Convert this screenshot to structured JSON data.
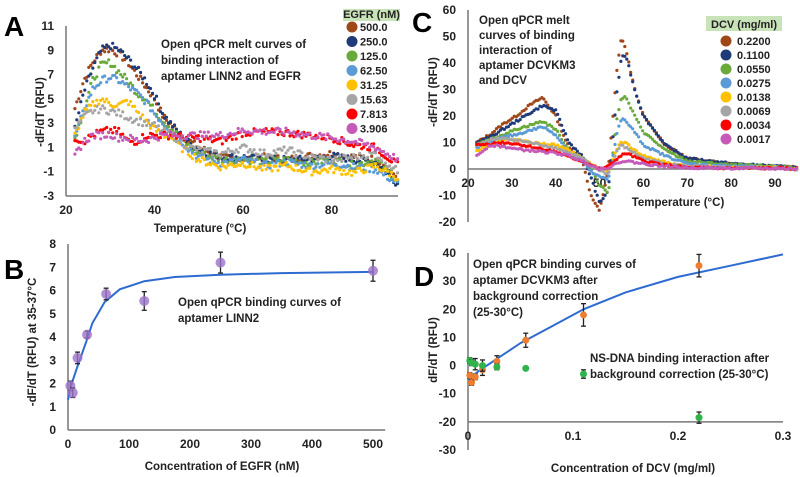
{
  "panels": {
    "a": "A",
    "b": "B",
    "c": "C",
    "d": "D"
  },
  "annotations": {
    "a": [
      "Open qPCR melt curves of",
      "binding interaction of",
      "aptamer LINN2  and EGFR"
    ],
    "b": [
      "Open qPCR binding curves of",
      "aptamer LINN2"
    ],
    "c": [
      "Open qPCR melt",
      "curves of binding",
      "interaction of",
      "aptamer DCVKM3",
      " and DCV"
    ],
    "d1": [
      "Open qPCR binding curves of",
      "aptamer DCVKM3 after",
      "background correction",
      "(25-30°C)"
    ],
    "d2": [
      "NS-DNA  binding interaction after",
      "background correction (25-30°C)"
    ]
  },
  "chart_data": [
    {
      "id": "a",
      "type": "scatter",
      "title": "Open qPCR melt curves of binding interaction of aptamer LINN2 and EGFR",
      "xlabel": "Temperature (°C)",
      "ylabel": "-dF/dT (RFU)",
      "xlim": [
        20,
        95
      ],
      "ylim": [
        -3,
        11
      ],
      "xticks": [
        "20",
        "40",
        "60",
        "80"
      ],
      "xtick_values": [
        20,
        40,
        60,
        80
      ],
      "yticks": [
        "-3",
        "-1",
        "1",
        "3",
        "5",
        "7",
        "9",
        "11"
      ],
      "ytick_values": [
        -3,
        -1,
        1,
        3,
        5,
        7,
        9,
        11
      ],
      "legend_title": "EGFR (nM)",
      "legend_position": "top-right",
      "x": [
        22,
        24,
        26,
        28,
        30,
        32,
        34,
        36,
        38,
        40,
        42,
        44,
        46,
        48,
        50,
        55,
        60,
        65,
        70,
        75,
        80,
        85,
        90,
        95
      ],
      "series": [
        {
          "name": "500.0",
          "color": "#a0471a",
          "values": [
            4.2,
            6.5,
            8,
            9,
            9.1,
            8.7,
            8,
            7,
            6,
            5,
            3.5,
            2.8,
            2,
            1.5,
            1,
            0.2,
            0,
            0.2,
            0,
            0.3,
            0.5,
            0.2,
            0,
            -1.5
          ]
        },
        {
          "name": "250.0",
          "color": "#1f3a78",
          "values": [
            2.5,
            5.5,
            7.5,
            9,
            9.4,
            9,
            8.3,
            7.5,
            6.5,
            5.3,
            3.7,
            2.8,
            2,
            1.3,
            0.8,
            0.2,
            0.2,
            0,
            0,
            0,
            0.3,
            0,
            -0.2,
            -2
          ]
        },
        {
          "name": "125.0",
          "color": "#6aaa3a",
          "values": [
            1.8,
            4,
            6.5,
            7.8,
            8,
            7.2,
            6.5,
            5.5,
            5,
            4,
            3.2,
            2.5,
            1.7,
            1,
            0.5,
            0,
            0,
            -0.2,
            0,
            -0.3,
            0,
            -0.5,
            0,
            -1.8
          ]
        },
        {
          "name": "62.50",
          "color": "#5b9bd5",
          "values": [
            1.8,
            4,
            5.8,
            6.5,
            6.8,
            6.5,
            6,
            5.5,
            4.8,
            3.8,
            3,
            2.2,
            1.5,
            0.8,
            0.2,
            -0.3,
            0,
            -0.5,
            -0.2,
            -0.5,
            -0.3,
            -0.6,
            -0.8,
            -2
          ]
        },
        {
          "name": "31.25",
          "color": "#ffc000",
          "values": [
            2,
            3.8,
            4.5,
            5,
            4.6,
            4.5,
            4.8,
            4,
            3.2,
            2.5,
            2,
            1.8,
            1,
            0.5,
            0,
            -0.6,
            -0.3,
            -0.8,
            -0.5,
            -1,
            -0.8,
            -1.1,
            -0.5,
            -1.5
          ]
        },
        {
          "name": "15.63",
          "color": "#a5a5a5",
          "values": [
            2.4,
            3.5,
            4,
            4.2,
            4,
            3.8,
            3.5,
            3.2,
            3,
            2.8,
            2.3,
            2,
            1.5,
            1,
            0.8,
            0.5,
            1,
            0.5,
            0.8,
            0.2,
            0,
            0.2,
            0.5,
            -1
          ]
        },
        {
          "name": "7.813",
          "color": "#ff0000",
          "values": [
            1.8,
            1.5,
            2,
            2.3,
            2.4,
            2.3,
            1.5,
            1.5,
            2,
            2,
            2,
            2,
            1.9,
            1.8,
            1.8,
            1.5,
            2.2,
            2.3,
            2.2,
            2,
            1.8,
            1.2,
            1,
            -0.5
          ]
        },
        {
          "name": "3.906",
          "color": "#c55ab8",
          "values": [
            0.3,
            1.5,
            2,
            2,
            2.1,
            1.8,
            1.8,
            1.6,
            1.6,
            1.8,
            2,
            2,
            2,
            2,
            2,
            2,
            2.4,
            2.3,
            2.3,
            2,
            1.8,
            1.5,
            1,
            0
          ]
        }
      ]
    },
    {
      "id": "b",
      "type": "scatter",
      "title": "Open qPCR binding curves of aptamer LINN2",
      "xlabel": "Concentration of EGFR (nM)",
      "ylabel": "-dF/dT (RFU) at 35-37°C",
      "xlim": [
        0,
        520
      ],
      "ylim": [
        0,
        8
      ],
      "xticks": [
        "0",
        "100",
        "200",
        "300",
        "400",
        "500"
      ],
      "xtick_values": [
        0,
        100,
        200,
        300,
        400,
        500
      ],
      "yticks": [
        "0",
        "1",
        "2",
        "3",
        "4",
        "5",
        "6",
        "7",
        "8"
      ],
      "ytick_values": [
        0,
        1,
        2,
        3,
        4,
        5,
        6,
        7,
        8
      ],
      "points": {
        "color": "#9b72c8",
        "x": [
          3.906,
          7.813,
          15.63,
          31.25,
          62.5,
          125,
          250,
          500
        ],
        "y": [
          1.9,
          1.6,
          3.1,
          4.1,
          5.85,
          5.55,
          7.2,
          6.85
        ],
        "error": [
          0.2,
          0.2,
          0.25,
          0.15,
          0.25,
          0.4,
          0.45,
          0.45
        ]
      },
      "fit": {
        "color": "#2e6bd1",
        "x": [
          0,
          5,
          15,
          30,
          40,
          60,
          85,
          125,
          175,
          250,
          350,
          500
        ],
        "y": [
          1.3,
          1.9,
          2.7,
          3.8,
          4.6,
          5.5,
          6.05,
          6.4,
          6.58,
          6.68,
          6.75,
          6.8
        ]
      }
    },
    {
      "id": "c",
      "type": "scatter",
      "title": "Open qPCR melt curves of binding interaction of aptamer DCVKM3 and DCV",
      "xlabel": "Temperature (°C)",
      "ylabel": "-dF/dT (RFU)",
      "xlim": [
        20,
        95
      ],
      "ylim": [
        -20,
        60
      ],
      "xticks": [
        "20",
        "30",
        "40",
        "50",
        "60",
        "70",
        "80",
        "90"
      ],
      "xtick_values": [
        20,
        30,
        40,
        50,
        60,
        70,
        80,
        90
      ],
      "yticks": [
        "-20",
        "-10",
        "0",
        "10",
        "20",
        "30",
        "40",
        "50",
        "60"
      ],
      "ytick_values": [
        -20,
        -10,
        0,
        10,
        20,
        30,
        40,
        50,
        60
      ],
      "legend_title": "DCV (mg/ml)",
      "legend_position": "top-right",
      "x": [
        22,
        25,
        28,
        31,
        34,
        37,
        40,
        43,
        46,
        48,
        50,
        52,
        54,
        55,
        56,
        58,
        60,
        65,
        70,
        80,
        90,
        95
      ],
      "series": [
        {
          "name": "0.2200",
          "color": "#a0471a",
          "values": [
            10,
            13,
            17,
            20,
            24,
            27,
            20,
            8,
            4,
            -10,
            -16,
            0,
            38,
            50,
            45,
            30,
            20,
            9,
            4,
            2,
            1,
            0.5
          ]
        },
        {
          "name": "0.1100",
          "color": "#1f3a78",
          "values": [
            10,
            12,
            15,
            18,
            21,
            24,
            22,
            10,
            5,
            -3,
            -13,
            -8,
            30,
            42,
            43,
            30,
            20,
            9,
            4,
            2,
            1,
            0.5
          ]
        },
        {
          "name": "0.0550",
          "color": "#6aaa3a",
          "values": [
            9,
            11,
            13,
            15,
            16.5,
            18,
            15,
            7,
            4,
            0,
            -6,
            -9,
            20,
            27,
            27,
            20,
            14,
            7,
            3,
            1.5,
            1,
            0.5
          ]
        },
        {
          "name": "0.0275",
          "color": "#5b9bd5",
          "values": [
            8,
            10,
            12,
            13,
            14.5,
            16,
            13,
            6,
            3,
            -1,
            -3,
            -4,
            14,
            19,
            18,
            14,
            9,
            5,
            2,
            1,
            0.5,
            0
          ]
        },
        {
          "name": "0.0138",
          "color": "#ffc000",
          "values": [
            7,
            9,
            11,
            11,
            10,
            9.5,
            9,
            7,
            4,
            2,
            0,
            -1,
            8,
            10,
            10,
            7,
            5,
            2.5,
            1,
            0.5,
            0.5,
            0
          ]
        },
        {
          "name": "0.0069",
          "color": "#a5a5a5",
          "values": [
            9,
            11,
            11.5,
            11,
            10,
            9,
            8,
            6,
            4,
            1.5,
            -0.5,
            -2,
            7,
            9,
            8,
            6,
            4,
            2,
            1,
            0.5,
            0.5,
            0
          ]
        },
        {
          "name": "0.0034",
          "color": "#ff0000",
          "values": [
            9,
            9.5,
            10,
            9.5,
            8.5,
            7.5,
            6.5,
            4.5,
            3,
            1.5,
            0,
            1,
            4,
            5,
            6,
            4.5,
            3,
            1.5,
            0.5,
            0.3,
            0.3,
            0
          ]
        },
        {
          "name": "0.0017",
          "color": "#c55ab8",
          "values": [
            5,
            9,
            8.5,
            7.5,
            7,
            6.5,
            6,
            5,
            3,
            1.5,
            0,
            0.5,
            2,
            3,
            3,
            2.5,
            2,
            1,
            0.5,
            0.3,
            0.2,
            0
          ]
        }
      ]
    },
    {
      "id": "d",
      "type": "scatter",
      "title": "Open qPCR binding curves of aptamer DCVKM3 after background correction",
      "xlabel": "Concentration of DCV (mg/ml)",
      "ylabel": "dF/dT (RFU)",
      "xlim": [
        0,
        0.3
      ],
      "ylim": [
        -30,
        40
      ],
      "xticks": [
        "0",
        "0.1",
        "0.2",
        "0.3"
      ],
      "xtick_values": [
        0,
        0.1,
        0.2,
        0.3
      ],
      "yticks": [
        "-30",
        "-20",
        "-10",
        "0",
        "10",
        "20",
        "30",
        "40"
      ],
      "ytick_values": [
        -30,
        -20,
        -10,
        0,
        10,
        20,
        30,
        40
      ],
      "series": [
        {
          "name": "DCVKM3",
          "color": "#ed7d31",
          "x": [
            0.0017,
            0.0034,
            0.0069,
            0.0138,
            0.0275,
            0.055,
            0.11,
            0.22
          ],
          "y": [
            -3.5,
            -6,
            -4,
            -1.5,
            1.5,
            9,
            18,
            35.5
          ],
          "error": [
            1,
            1,
            1,
            2,
            2,
            2.5,
            4,
            4
          ]
        },
        {
          "name": "NS-DNA",
          "color": "#2fb34a",
          "x": [
            0.0017,
            0.0034,
            0.0069,
            0.0138,
            0.0275,
            0.055,
            0.11,
            0.22
          ],
          "y": [
            1.8,
            1,
            0.5,
            0,
            -0.5,
            -1,
            -3,
            -18.5
          ],
          "error": [
            1,
            1,
            2,
            2,
            1,
            0,
            1.5,
            2
          ]
        }
      ],
      "fit": {
        "color": "#2e6bd1",
        "x": [
          0,
          0.01,
          0.03,
          0.05,
          0.08,
          0.11,
          0.15,
          0.2,
          0.25,
          0.3
        ],
        "y": [
          -5,
          -2,
          3,
          8,
          14,
          20,
          26,
          31.5,
          35.5,
          39.5
        ]
      }
    }
  ]
}
